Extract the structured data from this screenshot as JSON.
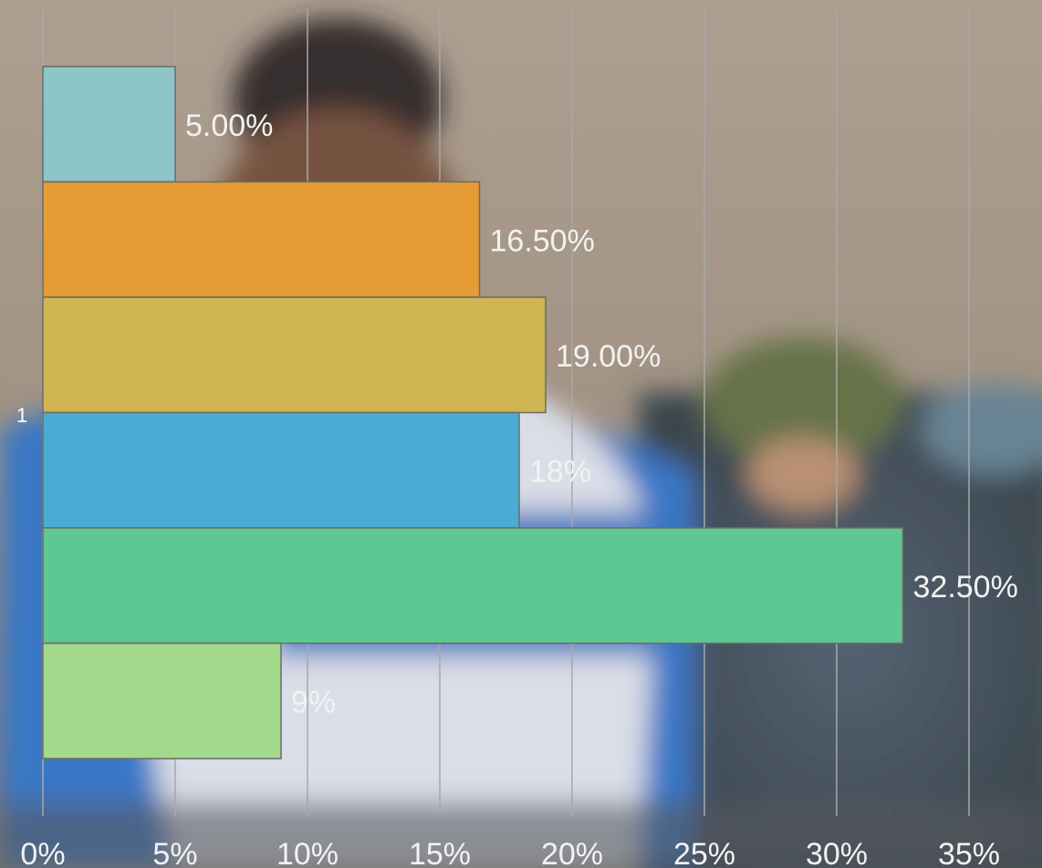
{
  "colors": {
    "bars": [
      "#8ec6c8",
      "#e59c35",
      "#cfb653",
      "#4aacd2",
      "#5ec892",
      "#a2d98a"
    ],
    "bar_stroke": "#6b6b6b",
    "gridline": "#a8a8a8",
    "text": "#f2f2f2"
  },
  "chart_data": {
    "type": "bar",
    "orientation": "horizontal",
    "categories": [
      "1"
    ],
    "series": [
      {
        "values": [
          5.0
        ],
        "label": "5.00%"
      },
      {
        "values": [
          16.5
        ],
        "label": "16.50%"
      },
      {
        "values": [
          19.0
        ],
        "label": "19.00%"
      },
      {
        "values": [
          18.0
        ],
        "label": "18%"
      },
      {
        "values": [
          32.5
        ],
        "label": "32.50%"
      },
      {
        "values": [
          9.0
        ],
        "label": "9%"
      }
    ],
    "xlim": [
      0,
      35
    ],
    "xticks": [
      0,
      5,
      10,
      15,
      20,
      25,
      30,
      35
    ],
    "xtick_labels": [
      "0%",
      "5%",
      "10%",
      "15%",
      "20%",
      "25%",
      "30%",
      "35%"
    ],
    "grid": true,
    "background": "photo"
  }
}
